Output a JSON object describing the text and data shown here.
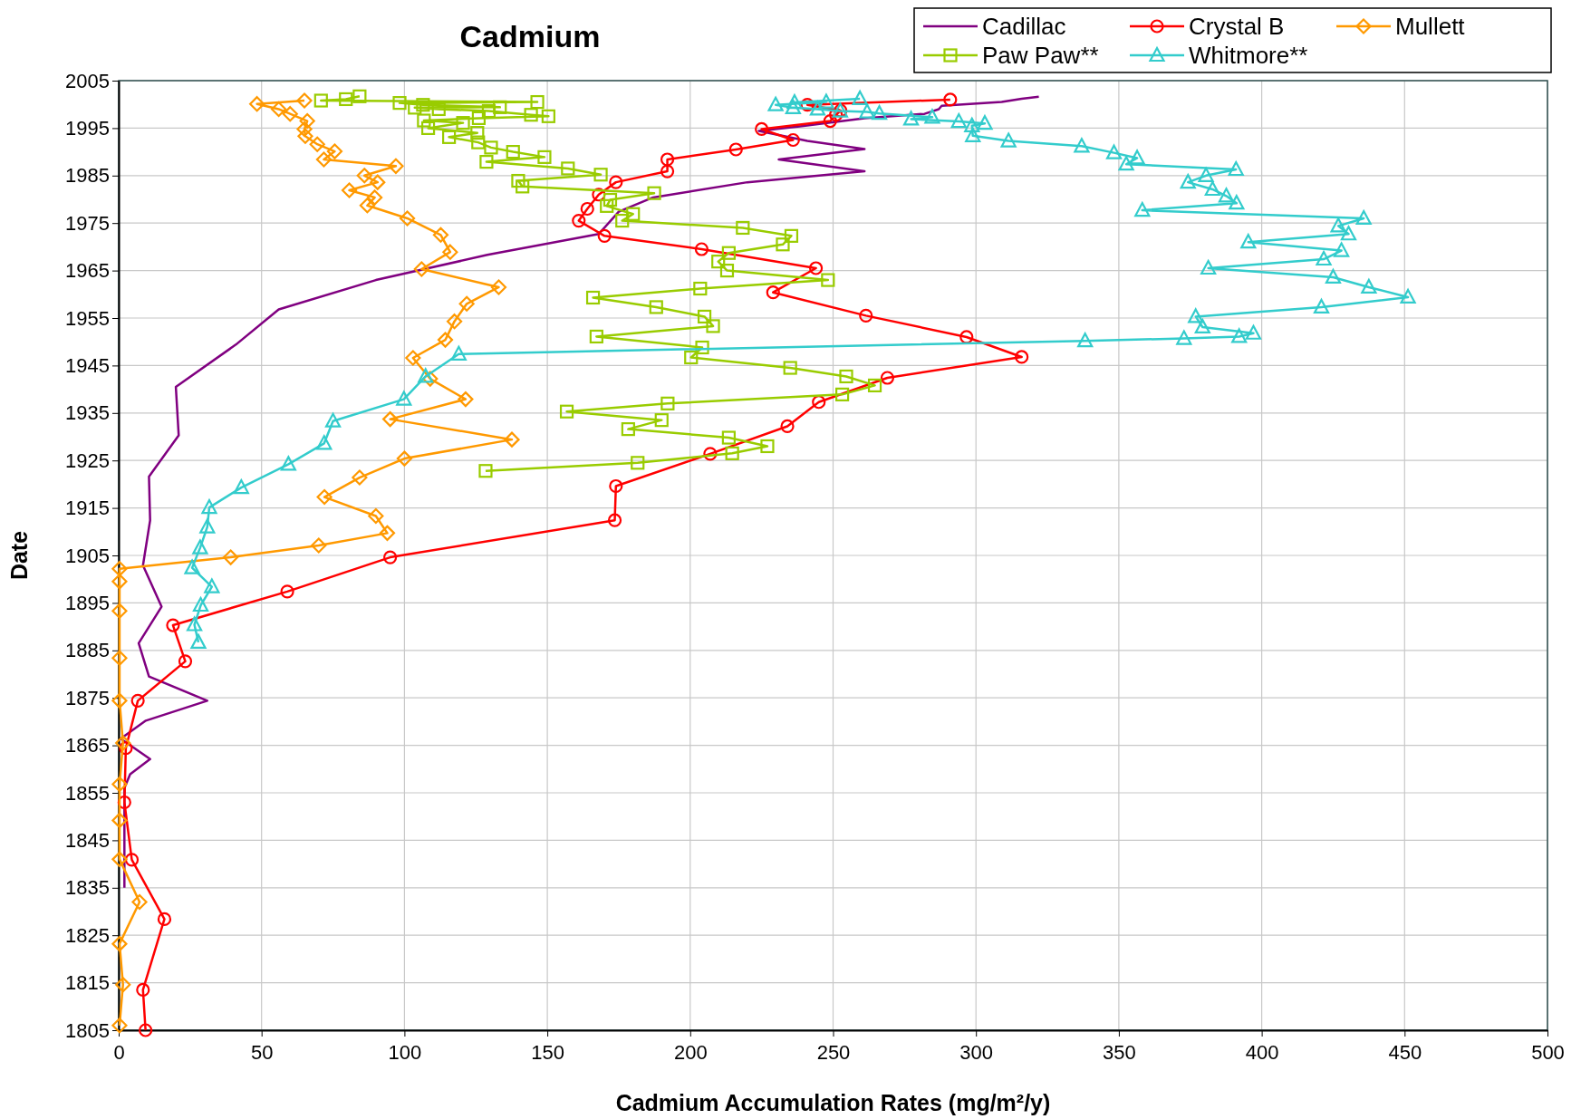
{
  "chart_data": {
    "type": "line",
    "title": "Cadmium",
    "xlabel": "Cadmium Accumulation Rates (mg/m²/y)",
    "ylabel": "Date",
    "xlim": [
      0,
      500
    ],
    "xticks": [
      0,
      50,
      100,
      150,
      200,
      250,
      300,
      350,
      400,
      450,
      500
    ],
    "ylim": [
      1805,
      2005
    ],
    "yticks": [
      1805,
      1815,
      1825,
      1835,
      1845,
      1855,
      1865,
      1875,
      1885,
      1895,
      1905,
      1915,
      1925,
      1935,
      1945,
      1955,
      1965,
      1975,
      1985,
      1995,
      2005
    ],
    "grid": true,
    "legend": "top right",
    "line_style": "solid",
    "series": [
      {
        "name": "Cadillac",
        "color": "#800080",
        "marker": "none",
        "x": [
          322,
          316,
          309,
          288,
          287,
          282,
          261,
          239,
          224,
          241,
          261,
          231,
          261,
          220,
          187,
          175,
          168,
          129,
          90,
          56,
          41,
          20,
          21,
          10.6,
          11,
          8.5,
          15,
          7,
          10.6,
          31,
          9.5,
          0.7,
          11,
          4,
          2,
          2,
          2,
          2,
          2,
          2,
          2,
          2,
          2,
          2
        ],
        "values": [
          2001.6,
          2001.2,
          2000.5,
          1999.7,
          1999,
          1998,
          1997.1,
          1995.4,
          1994.4,
          1992.3,
          1990.6,
          1988.4,
          1985.9,
          1983.6,
          1980.4,
          1977.4,
          1972.7,
          1968.3,
          1963,
          1956.8,
          1949.4,
          1940.5,
          1930.3,
          1921.6,
          1912.4,
          1902.9,
          1894.2,
          1886.5,
          1879.5,
          1874.4,
          1870.2,
          1866.4,
          1862.1,
          1858.9,
          1856,
          1853,
          1850,
          1847,
          1845,
          1843,
          1841,
          1839,
          1837,
          1835
        ]
      },
      {
        "name": "Crystal B",
        "color": "#ff0000",
        "marker": "circle",
        "x": [
          291,
          241,
          252.6,
          251,
          249,
          225,
          236,
          216,
          192,
          192,
          174,
          168,
          164,
          161,
          170,
          204,
          244,
          229,
          261.5,
          296.7,
          316,
          269,
          245,
          234,
          207,
          174,
          173.6,
          95,
          59,
          19,
          23.3,
          6.7,
          2.5,
          2,
          4.6,
          16,
          8.5,
          9.4
        ],
        "values": [
          2001,
          1999.9,
          1998.7,
          1997.8,
          1996.5,
          1994.8,
          1992.5,
          1990.5,
          1988.4,
          1985.9,
          1983.6,
          1981,
          1978,
          1975.5,
          1972.3,
          1969.5,
          1965.5,
          1960.4,
          1955.5,
          1951,
          1946.8,
          1942.4,
          1937.3,
          1932.2,
          1926.4,
          1919.6,
          1912.4,
          1904.6,
          1897.4,
          1890.3,
          1882.7,
          1874.4,
          1864.4,
          1853,
          1840.9,
          1828.4,
          1813.5,
          1805
        ]
      },
      {
        "name": "Mullett",
        "color": "#ff9900",
        "marker": "diamond",
        "x": [
          65,
          48.4,
          56,
          60,
          66,
          65,
          65.3,
          69.5,
          75.6,
          71.8,
          97,
          86,
          90.6,
          80.7,
          89.6,
          87,
          101,
          112.7,
          116,
          106,
          133,
          121.8,
          117.5,
          114.3,
          103,
          109,
          121.4,
          95,
          137.6,
          100,
          84.3,
          72,
          90,
          94,
          70,
          39.2,
          0.3,
          0.3,
          0.3,
          0.3,
          0.3,
          1.5,
          0.3,
          0.3,
          0.3,
          7.3,
          0.3,
          1.5,
          0.3
        ],
        "values": [
          2000.8,
          2000.1,
          1999,
          1998,
          1996.5,
          1994.8,
          1993.3,
          1991.6,
          1990.1,
          1988.4,
          1987,
          1985,
          1983.6,
          1981.9,
          1980.4,
          1978.7,
          1976,
          1972.5,
          1968.9,
          1965.3,
          1961.5,
          1958,
          1954.3,
          1950.4,
          1946.6,
          1942.2,
          1937.9,
          1933.7,
          1929.4,
          1925.4,
          1921.4,
          1917.3,
          1913.3,
          1909.7,
          1907.1,
          1904.6,
          1902.2,
          1899.5,
          1893.3,
          1883.4,
          1874.4,
          1865.5,
          1856.8,
          1849.2,
          1841,
          1832,
          1823.2,
          1814.6,
          1806
        ]
      },
      {
        "name": "Paw Paw**",
        "color": "#99cc00",
        "marker": "square",
        "x": [
          84.3,
          79.5,
          70.8,
          146.5,
          98.3,
          106.5,
          133.4,
          103.6,
          112,
          129.5,
          144.3,
          150.4,
          126,
          106.8,
          120.5,
          108.3,
          125.5,
          115.6,
          125.8,
          130.3,
          138,
          149,
          128.7,
          157.2,
          168.7,
          139.8,
          141.3,
          187.4,
          172,
          170.8,
          180,
          176.2,
          218.4,
          235.4,
          232.4,
          213.5,
          209.8,
          212.9,
          248.2,
          203.5,
          166,
          188.1,
          205,
          208,
          167.2,
          204.2,
          200.3,
          235,
          254.6,
          264.6,
          253.2,
          192.1,
          156.8,
          190,
          178.3,
          213.5,
          227,
          214.7,
          181.6,
          128.4
        ],
        "values": [
          2001.7,
          2001.1,
          2000.8,
          2000.5,
          2000.3,
          1999.9,
          1999.4,
          1999.3,
          1999,
          1998.6,
          1997.8,
          1997.5,
          1997.1,
          1996.6,
          1996.1,
          1995,
          1994,
          1993.1,
          1992,
          1990.9,
          1990,
          1988.9,
          1987.9,
          1986.5,
          1985.2,
          1983.9,
          1982.7,
          1981.3,
          1979.9,
          1978.6,
          1976.9,
          1975.5,
          1974,
          1972.3,
          1970.5,
          1968.7,
          1966.9,
          1965,
          1963,
          1961.2,
          1959.3,
          1957.3,
          1955.3,
          1953.3,
          1951.1,
          1948.8,
          1946.7,
          1944.5,
          1942.7,
          1940.8,
          1938.9,
          1937,
          1935.3,
          1933.5,
          1931.6,
          1929.8,
          1928,
          1926.5,
          1924.5,
          1922.8
        ]
      },
      {
        "name": "Whitmore**",
        "color": "#33cccc",
        "marker": "triangle",
        "x": [
          259.4,
          236.5,
          247.6,
          229.9,
          236,
          244.6,
          252.5,
          261.9,
          266.2,
          284.7,
          277.3,
          294,
          303.1,
          298.6,
          298.9,
          311.4,
          337,
          348.3,
          356.4,
          352.6,
          391,
          380.5,
          374.2,
          382.8,
          387.6,
          391.2,
          358.2,
          435.7,
          426.8,
          430.4,
          395.3,
          427.9,
          421.7,
          381.3,
          425,
          437.5,
          451.2,
          420.9,
          376.9,
          379.3,
          397.1,
          392.1,
          372.8,
          338.2,
          119,
          107.4,
          99.8,
          75,
          71.9,
          59.4,
          42.9,
          31.7,
          31,
          28.5,
          25.7,
          32.6,
          28.7,
          26.5,
          27.9
        ],
        "values": [
          2001.2,
          2000.4,
          2000.5,
          1999.9,
          1999.3,
          1999,
          1998.6,
          1998.4,
          1998.1,
          1997.3,
          1996.9,
          1996.4,
          1996,
          1995.5,
          1993.4,
          1992.3,
          1991.2,
          1989.8,
          1988.7,
          1987.4,
          1986.3,
          1985,
          1983.6,
          1982.1,
          1980.7,
          1979.2,
          1977.7,
          1976,
          1974.4,
          1972.7,
          1971,
          1969.2,
          1967.4,
          1965.5,
          1963.6,
          1961.5,
          1959.4,
          1957.3,
          1955.3,
          1953.1,
          1951.8,
          1951.1,
          1950.7,
          1950.2,
          1947.4,
          1942.7,
          1937.9,
          1933.3,
          1928.6,
          1924.2,
          1919.3,
          1915.1,
          1911,
          1906.6,
          1902.4,
          1898.4,
          1894.5,
          1890.4,
          1886.7
        ]
      }
    ]
  }
}
